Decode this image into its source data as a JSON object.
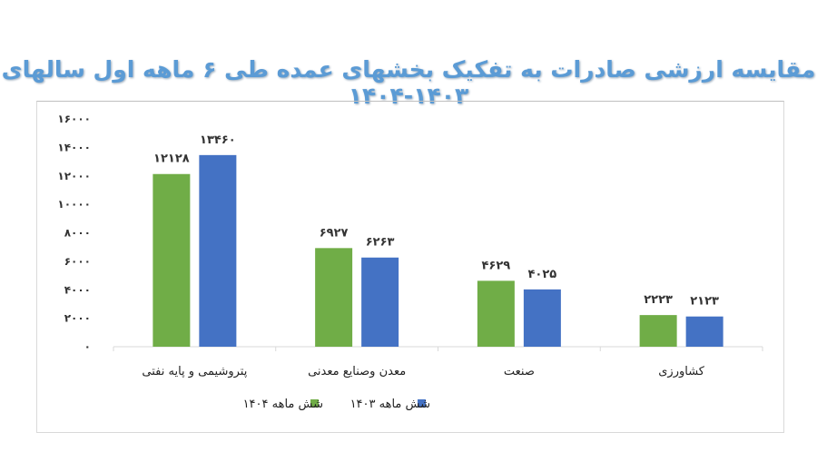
{
  "chart_data": {
    "type": "bar",
    "title": "مقایسه ارزشی صادرات به تفکیک بخشهای عمده طی ۶ ماهه اول سالهای ۱۴۰۳-۱۴۰۴",
    "categories": [
      "پتروشیمی و پایه نفتی",
      "معدن وصنایع معدنی",
      "صنعت",
      "کشاورزی"
    ],
    "series": [
      {
        "name": "شش ماهه ۱۴۰۴",
        "color": "#70AD47",
        "values": [
          12128,
          6927,
          4629,
          2223
        ],
        "labels": [
          "۱۲۱۲۸",
          "۶۹۲۷",
          "۴۶۲۹",
          "۲۲۲۳"
        ]
      },
      {
        "name": "شش ماهه ۱۴۰۳",
        "color": "#4472C4",
        "values": [
          13460,
          6263,
          4025,
          2123
        ],
        "labels": [
          "۱۳۴۶۰",
          "۶۲۶۳",
          "۴۰۲۵",
          "۲۱۲۳"
        ]
      }
    ],
    "ylim": [
      0,
      16000
    ],
    "yticks": [
      0,
      2000,
      4000,
      6000,
      8000,
      10000,
      12000,
      14000,
      16000
    ],
    "ytick_labels": [
      "۰",
      "۲۰۰۰",
      "۴۰۰۰",
      "۶۰۰۰",
      "۸۰۰۰",
      "۱۰۰۰۰",
      "۱۲۰۰۰",
      "۱۴۰۰۰",
      "۱۶۰۰۰"
    ],
    "grid": false,
    "legend": "bottom",
    "title_color": "#5B9BD5"
  }
}
